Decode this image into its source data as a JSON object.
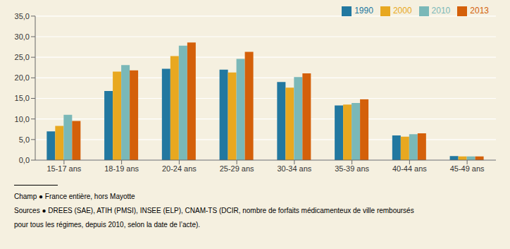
{
  "chart_data": {
    "type": "bar",
    "categories": [
      "15-17 ans",
      "18-19 ans",
      "20-24 ans",
      "25-29 ans",
      "30-34 ans",
      "35-39 ans",
      "40-44 ans",
      "45-49 ans"
    ],
    "series": [
      {
        "name": "1990",
        "color": "#2278a0",
        "values": [
          7.0,
          16.8,
          22.2,
          22.0,
          19.0,
          13.3,
          6.0,
          1.0
        ]
      },
      {
        "name": "2000",
        "color": "#e8a820",
        "values": [
          8.3,
          21.5,
          25.3,
          21.3,
          17.6,
          13.5,
          5.7,
          0.9
        ]
      },
      {
        "name": "2010",
        "color": "#7ab8b8",
        "values": [
          11.0,
          23.1,
          27.8,
          24.6,
          20.2,
          13.9,
          6.3,
          0.9
        ]
      },
      {
        "name": "2013",
        "color": "#d4600a",
        "values": [
          9.5,
          21.8,
          28.6,
          26.3,
          21.1,
          14.8,
          6.5,
          0.9
        ]
      }
    ],
    "ylim": [
      0,
      35
    ],
    "yticks": [
      {
        "value": 0,
        "label": "0,0"
      },
      {
        "value": 5,
        "label": "5,0"
      },
      {
        "value": 10,
        "label": "10,0"
      },
      {
        "value": 15,
        "label": "15,0"
      },
      {
        "value": 20,
        "label": "20,0"
      },
      {
        "value": 25,
        "label": "25,0"
      },
      {
        "value": 30,
        "label": "30,0"
      },
      {
        "value": 35,
        "label": "35,0"
      }
    ],
    "grid": true,
    "legend": "upper right",
    "annotations": [
      "Champ ● France entière, hors Mayotte",
      "Sources ● DREES (SAE), ATIH (PMSI), INSEE (ELP), CNAM-TS (DCIR, nombre de forfaits médicamenteux de ville remboursés",
      "pour tous les régimes, depuis 2010, selon la date de l’acte)."
    ]
  }
}
